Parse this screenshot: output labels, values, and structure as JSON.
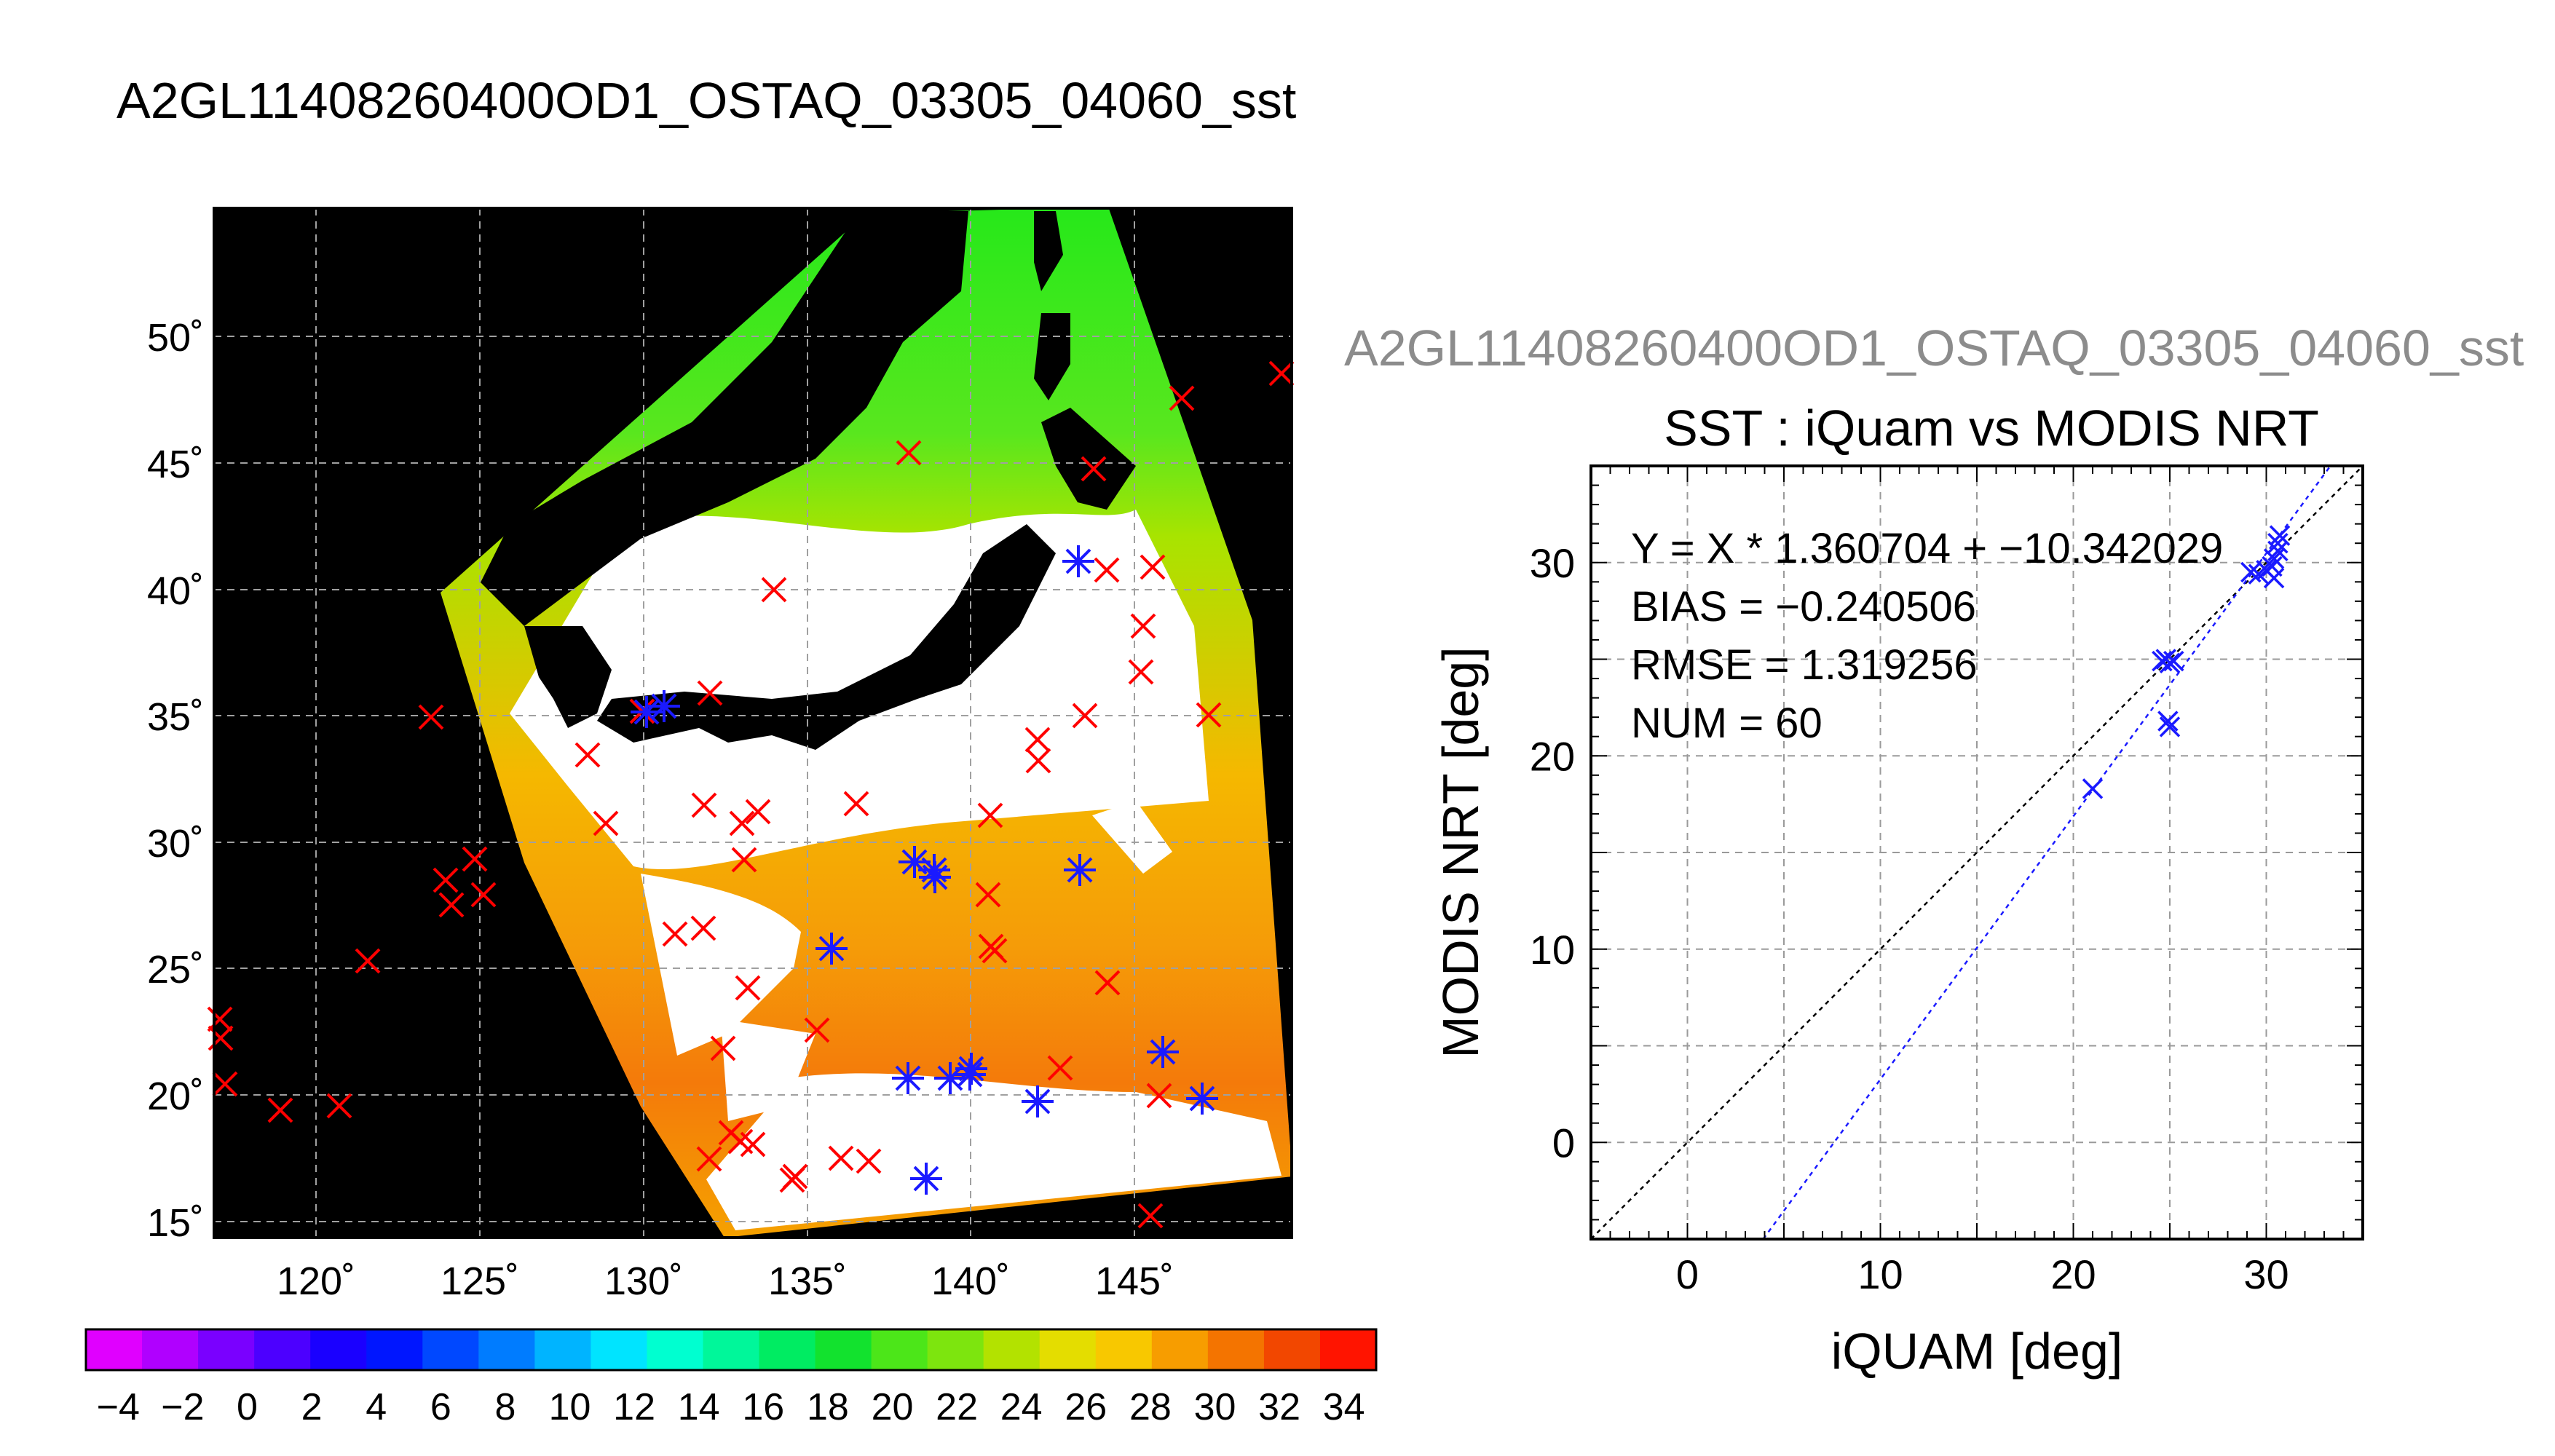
{
  "page": {
    "title": "A2GL11408260400OD1_OSTAQ_03305_04060_sst"
  },
  "map": {
    "lon_ticks": [
      "120˚",
      "125˚",
      "130˚",
      "135˚",
      "140˚",
      "145˚"
    ],
    "lat_ticks": [
      "50˚",
      "45˚",
      "40˚",
      "35˚",
      "30˚",
      "25˚",
      "20˚",
      "15˚"
    ],
    "colorbar": {
      "tick_labels": [
        "−4",
        "−2",
        "0",
        "2",
        "4",
        "6",
        "8",
        "10",
        "12",
        "14",
        "16",
        "18",
        "20",
        "22",
        "24",
        "26",
        "28",
        "30",
        "32",
        "34"
      ],
      "min": -5,
      "max": 35
    },
    "colors": {
      "land": "#000000",
      "marker_red": "#ff0000",
      "marker_blue": "#1a1aff"
    }
  },
  "chart_data": {
    "type": "scatter",
    "title": "SST : iQuam vs MODIS NRT",
    "subtitle": "A2GL11408260400OD1_OSTAQ_03305_04060_sst",
    "xlabel": "iQUAM [deg]",
    "ylabel": "MODIS NRT [deg]",
    "xlim": [
      -5,
      35
    ],
    "ylim": [
      -5,
      35
    ],
    "xticks": [
      0,
      10,
      20,
      30
    ],
    "yticks": [
      0,
      10,
      20,
      30
    ],
    "grid": true,
    "annotations": [
      "Y = X * 1.360704 + −10.342029",
      "BIAS = −0.240506",
      "RMSE = 1.319256",
      "NUM = 60"
    ],
    "fit": {
      "slope": 1.360704,
      "intercept": -10.342029
    },
    "series": [
      {
        "marker": "x",
        "color": "#1a1aff",
        "points": [
          [
            21.0,
            18.3
          ],
          [
            24.6,
            24.9
          ],
          [
            24.8,
            25.0
          ],
          [
            25.0,
            24.8
          ],
          [
            25.2,
            24.9
          ],
          [
            24.9,
            21.8
          ],
          [
            25.0,
            21.5
          ],
          [
            29.2,
            29.5
          ],
          [
            29.6,
            29.4
          ],
          [
            30.0,
            29.6
          ],
          [
            30.3,
            29.8
          ],
          [
            30.4,
            30.2
          ],
          [
            30.6,
            30.6
          ],
          [
            30.6,
            31.0
          ],
          [
            30.7,
            31.4
          ],
          [
            30.4,
            29.2
          ]
        ]
      }
    ]
  }
}
